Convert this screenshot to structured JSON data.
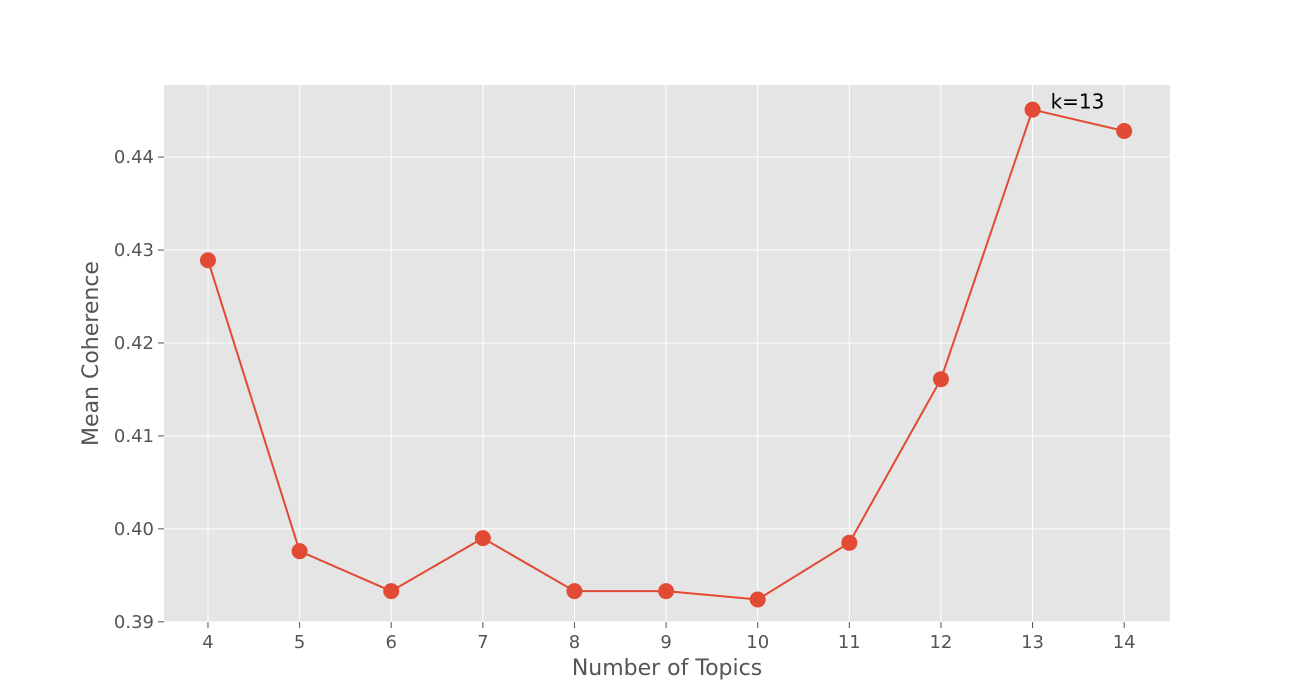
{
  "chart_data": {
    "type": "line",
    "title": "",
    "xlabel": "Number of Topics",
    "ylabel": "Mean Coherence",
    "x": [
      4,
      5,
      6,
      7,
      8,
      9,
      10,
      11,
      12,
      13,
      14
    ],
    "series": [
      {
        "values": [
          0.4289,
          0.3976,
          0.3933,
          0.399,
          0.3933,
          0.3933,
          0.3924,
          0.3985,
          0.4161,
          0.4451,
          0.4428
        ]
      }
    ],
    "x_ticks": [
      "4",
      "5",
      "6",
      "7",
      "8",
      "9",
      "10",
      "11",
      "12",
      "13",
      "14"
    ],
    "y_ticks": [
      "0.39",
      "0.40",
      "0.41",
      "0.42",
      "0.43",
      "0.44"
    ],
    "y_tick_values": [
      0.39,
      0.4,
      0.41,
      0.42,
      0.43,
      0.44
    ],
    "xlim": [
      3.52,
      14.5
    ],
    "ylim": [
      0.38998,
      0.44775
    ],
    "grid": true,
    "annotations": [
      {
        "text": "k=13",
        "x": 13,
        "y": 0.4451
      }
    ],
    "colors": {
      "line": "#E24A33",
      "plot_background": "#E5E5E5",
      "grid": "#FFFFFF",
      "text": "#555555"
    }
  }
}
